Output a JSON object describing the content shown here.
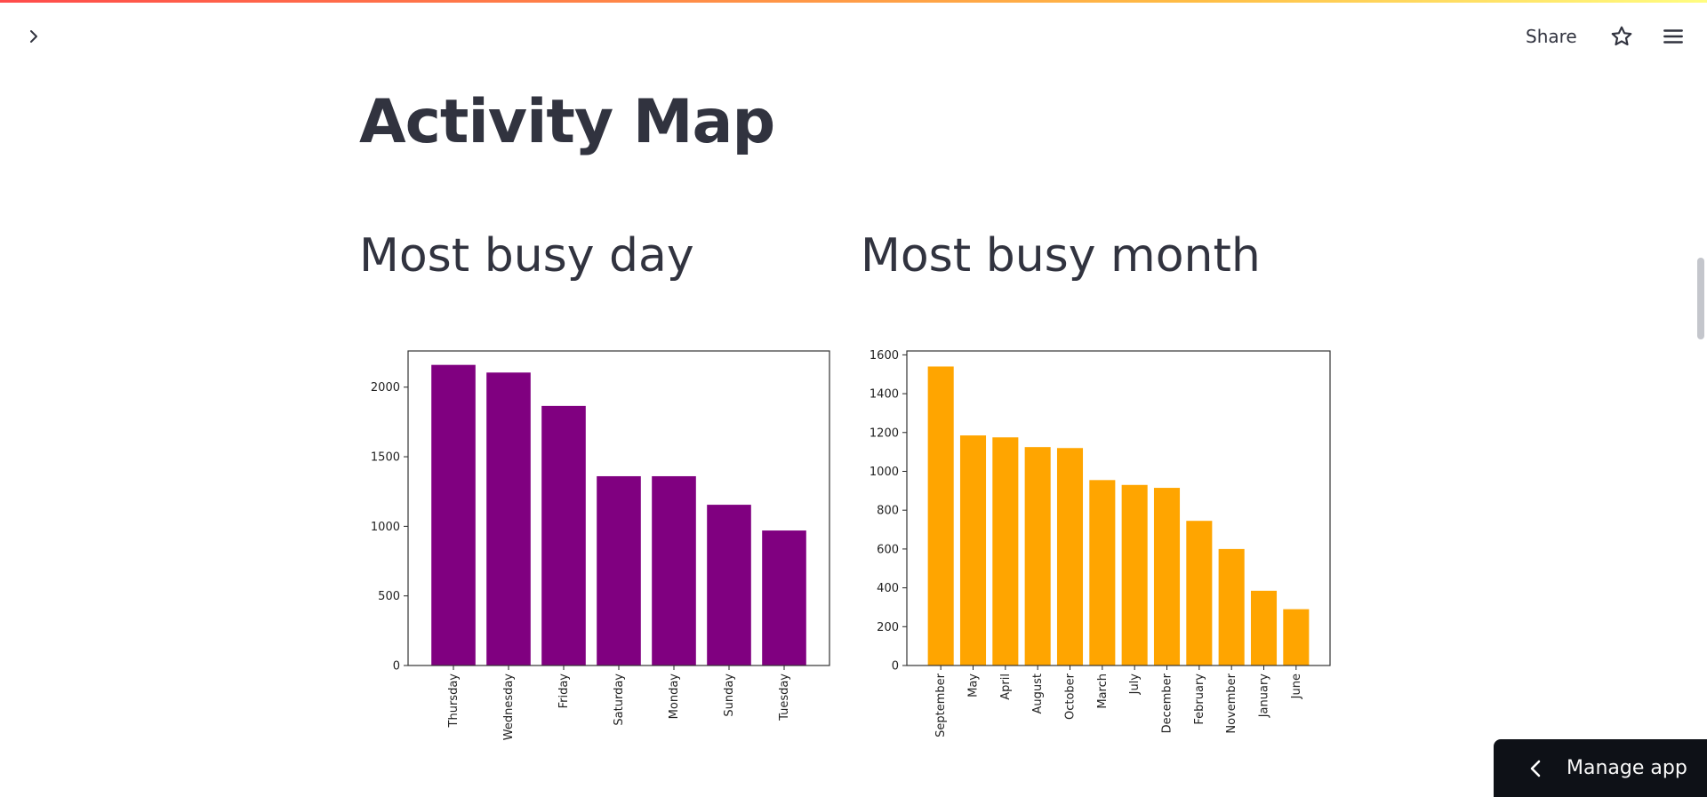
{
  "header": {
    "share_label": "Share"
  },
  "page": {
    "title": "Activity Map"
  },
  "sections": {
    "day_heading": "Most busy day",
    "month_heading": "Most busy month"
  },
  "colors": {
    "day_bar": "#800080",
    "month_bar": "#ffa500"
  },
  "manage_app": {
    "label": "Manage app"
  },
  "chart_data": [
    {
      "type": "bar",
      "title": "Most busy day",
      "categories": [
        "Thursday",
        "Wednesday",
        "Friday",
        "Saturday",
        "Monday",
        "Sunday",
        "Tuesday"
      ],
      "values": [
        2160,
        2105,
        1865,
        1360,
        1360,
        1155,
        970
      ],
      "ylim": [
        0,
        2260
      ],
      "yticks": [
        0,
        500,
        1000,
        1500,
        2000
      ],
      "xlabel": "",
      "ylabel": "",
      "color": "#800080"
    },
    {
      "type": "bar",
      "title": "Most busy month",
      "categories": [
        "September",
        "May",
        "April",
        "August",
        "October",
        "March",
        "July",
        "December",
        "February",
        "November",
        "January",
        "June"
      ],
      "values": [
        1540,
        1185,
        1175,
        1125,
        1120,
        955,
        930,
        915,
        745,
        600,
        385,
        290
      ],
      "ylim": [
        0,
        1620
      ],
      "yticks": [
        0,
        200,
        400,
        600,
        800,
        1000,
        1200,
        1400,
        1600
      ],
      "xlabel": "",
      "ylabel": "",
      "color": "#ffa500"
    }
  ]
}
